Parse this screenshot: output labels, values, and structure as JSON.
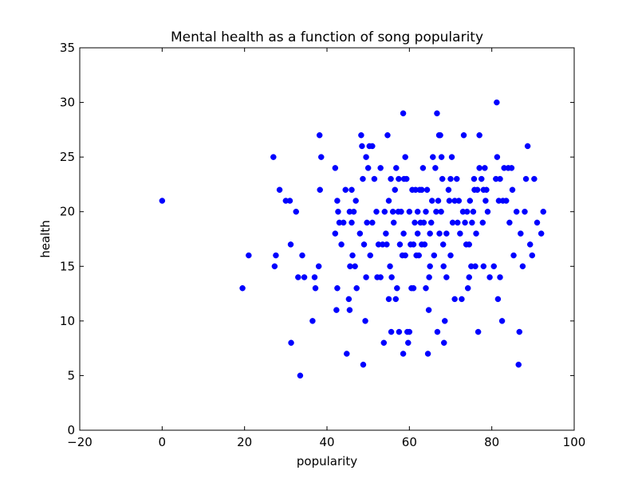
{
  "chart_data": {
    "type": "scatter",
    "title": "Mental health as a function of song popularity",
    "xlabel": "popularity",
    "ylabel": "health",
    "xlim": [
      -20,
      100
    ],
    "ylim": [
      0,
      35
    ],
    "xticks": [
      -20,
      0,
      20,
      40,
      60,
      80,
      100
    ],
    "yticks": [
      0,
      5,
      10,
      15,
      20,
      25,
      30,
      35
    ],
    "xtick_labels": [
      "−20",
      "0",
      "20",
      "40",
      "60",
      "80",
      "100"
    ],
    "ytick_labels": [
      "0",
      "5",
      "10",
      "15",
      "20",
      "25",
      "30",
      "35"
    ],
    "grid": false,
    "marker_color": "#0000ff",
    "series": [
      {
        "points": [
          [
            0,
            21
          ],
          [
            19.5,
            13
          ],
          [
            21,
            16
          ],
          [
            27,
            25
          ],
          [
            27.3,
            15
          ],
          [
            27.6,
            16
          ],
          [
            28.5,
            22
          ],
          [
            30,
            21
          ],
          [
            31,
            21
          ],
          [
            31.2,
            17
          ],
          [
            31.3,
            8
          ],
          [
            32.5,
            20
          ],
          [
            33,
            14
          ],
          [
            33.5,
            5
          ],
          [
            34,
            16
          ],
          [
            34.5,
            14
          ],
          [
            36.5,
            10
          ],
          [
            37,
            14
          ],
          [
            37.2,
            13
          ],
          [
            38,
            15
          ],
          [
            38.2,
            27
          ],
          [
            38.3,
            22
          ],
          [
            38.6,
            25
          ],
          [
            42,
            24
          ],
          [
            42,
            18
          ],
          [
            42.5,
            21
          ],
          [
            42.7,
            20
          ],
          [
            42.5,
            13
          ],
          [
            42.3,
            11
          ],
          [
            43,
            19
          ],
          [
            43.5,
            17
          ],
          [
            44,
            19
          ],
          [
            44.5,
            22
          ],
          [
            44.8,
            7
          ],
          [
            45.5,
            20
          ],
          [
            45.6,
            15
          ],
          [
            45.3,
            12
          ],
          [
            45.5,
            11
          ],
          [
            46,
            22
          ],
          [
            46,
            19
          ],
          [
            46.2,
            16
          ],
          [
            46.5,
            20
          ],
          [
            46.8,
            15
          ],
          [
            47,
            21
          ],
          [
            47.2,
            13
          ],
          [
            48,
            18
          ],
          [
            48.3,
            27
          ],
          [
            48.5,
            26
          ],
          [
            48.7,
            23
          ],
          [
            49,
            17
          ],
          [
            48.8,
            6
          ],
          [
            49.3,
            10
          ],
          [
            49.5,
            14
          ],
          [
            49.5,
            25
          ],
          [
            49.7,
            19
          ],
          [
            50,
            24
          ],
          [
            50.3,
            26
          ],
          [
            50.5,
            16
          ],
          [
            51,
            26
          ],
          [
            51,
            19
          ],
          [
            51.5,
            23
          ],
          [
            52,
            20
          ],
          [
            52.2,
            14
          ],
          [
            52.5,
            17
          ],
          [
            53,
            14
          ],
          [
            53,
            24
          ],
          [
            53.5,
            17
          ],
          [
            53.8,
            8
          ],
          [
            54,
            20
          ],
          [
            54.3,
            18
          ],
          [
            54.5,
            17
          ],
          [
            54.7,
            27
          ],
          [
            55,
            21
          ],
          [
            55,
            12
          ],
          [
            55.3,
            15
          ],
          [
            55.5,
            23
          ],
          [
            55.6,
            9
          ],
          [
            55.7,
            14
          ],
          [
            56,
            20
          ],
          [
            56.2,
            19
          ],
          [
            56.5,
            22
          ],
          [
            56.7,
            12
          ],
          [
            56.8,
            24
          ],
          [
            57,
            13
          ],
          [
            57.3,
            20
          ],
          [
            57.4,
            23
          ],
          [
            57.5,
            9
          ],
          [
            57.7,
            17
          ],
          [
            58,
            20
          ],
          [
            58.3,
            16
          ],
          [
            58.5,
            29
          ],
          [
            58.5,
            7
          ],
          [
            58.6,
            18
          ],
          [
            58.7,
            23
          ],
          [
            59,
            16
          ],
          [
            59,
            25
          ],
          [
            59.3,
            23
          ],
          [
            59.5,
            9
          ],
          [
            59.7,
            8
          ],
          [
            60,
            20
          ],
          [
            60,
            9
          ],
          [
            60.3,
            17
          ],
          [
            60.5,
            13
          ],
          [
            60.7,
            22
          ],
          [
            61,
            17
          ],
          [
            61,
            13
          ],
          [
            61.3,
            19
          ],
          [
            61.5,
            22
          ],
          [
            61.7,
            16
          ],
          [
            62,
            20
          ],
          [
            62,
            18
          ],
          [
            62.3,
            16
          ],
          [
            62.5,
            22
          ],
          [
            62.7,
            19
          ],
          [
            63,
            22
          ],
          [
            63,
            17
          ],
          [
            63.3,
            24
          ],
          [
            63.5,
            19
          ],
          [
            63.7,
            17
          ],
          [
            64,
            20
          ],
          [
            64,
            13
          ],
          [
            64.3,
            22
          ],
          [
            64.5,
            7
          ],
          [
            64.7,
            11
          ],
          [
            64.8,
            14
          ],
          [
            65,
            18
          ],
          [
            65,
            15
          ],
          [
            65.3,
            19
          ],
          [
            65.5,
            21
          ],
          [
            65.7,
            25
          ],
          [
            66,
            16
          ],
          [
            66.3,
            24
          ],
          [
            66.5,
            20
          ],
          [
            66.7,
            29
          ],
          [
            66.8,
            9
          ],
          [
            67,
            21
          ],
          [
            67.2,
            27
          ],
          [
            67.3,
            18
          ],
          [
            67.5,
            27
          ],
          [
            67.7,
            20
          ],
          [
            67.8,
            25
          ],
          [
            68,
            23
          ],
          [
            68.2,
            17
          ],
          [
            68.3,
            15
          ],
          [
            68.4,
            8
          ],
          [
            68.6,
            10
          ],
          [
            69,
            18
          ],
          [
            69,
            14
          ],
          [
            69.5,
            22
          ],
          [
            69.7,
            21
          ],
          [
            70,
            23
          ],
          [
            70,
            16
          ],
          [
            70.3,
            25
          ],
          [
            70.5,
            19
          ],
          [
            71,
            12
          ],
          [
            71,
            21
          ],
          [
            71.5,
            23
          ],
          [
            71.7,
            19
          ],
          [
            72,
            21
          ],
          [
            72.3,
            18
          ],
          [
            72.7,
            12
          ],
          [
            73,
            20
          ],
          [
            73.2,
            27
          ],
          [
            73.5,
            19
          ],
          [
            73.8,
            17
          ],
          [
            74,
            20
          ],
          [
            74.2,
            13
          ],
          [
            74.5,
            17
          ],
          [
            74.5,
            14
          ],
          [
            74.7,
            21
          ],
          [
            75,
            15
          ],
          [
            75.2,
            19
          ],
          [
            75.5,
            20
          ],
          [
            75.7,
            23
          ],
          [
            75.8,
            22
          ],
          [
            76,
            15
          ],
          [
            76.2,
            18
          ],
          [
            76.5,
            22
          ],
          [
            76.7,
            9
          ],
          [
            77,
            27
          ],
          [
            77,
            24
          ],
          [
            77.5,
            23
          ],
          [
            77.8,
            19
          ],
          [
            78,
            15
          ],
          [
            78,
            22
          ],
          [
            78.3,
            24
          ],
          [
            78.5,
            21
          ],
          [
            78.7,
            22
          ],
          [
            79,
            20
          ],
          [
            79.5,
            14
          ],
          [
            80.5,
            15
          ],
          [
            81,
            23
          ],
          [
            81.2,
            30
          ],
          [
            81.3,
            25
          ],
          [
            81.5,
            12
          ],
          [
            81.7,
            21
          ],
          [
            82,
            14
          ],
          [
            82,
            23
          ],
          [
            82.5,
            10
          ],
          [
            82.7,
            21
          ],
          [
            83,
            24
          ],
          [
            83.5,
            21
          ],
          [
            84,
            24
          ],
          [
            84.3,
            19
          ],
          [
            84.8,
            24
          ],
          [
            85,
            22
          ],
          [
            85.3,
            16
          ],
          [
            86,
            20
          ],
          [
            86.5,
            6
          ],
          [
            86.7,
            9
          ],
          [
            87,
            18
          ],
          [
            87.5,
            15
          ],
          [
            88,
            20
          ],
          [
            88.3,
            23
          ],
          [
            88.7,
            26
          ],
          [
            89.3,
            17
          ],
          [
            89.8,
            16
          ],
          [
            90.3,
            23
          ],
          [
            91,
            19
          ],
          [
            92,
            18
          ],
          [
            92.5,
            20
          ]
        ]
      }
    ]
  }
}
